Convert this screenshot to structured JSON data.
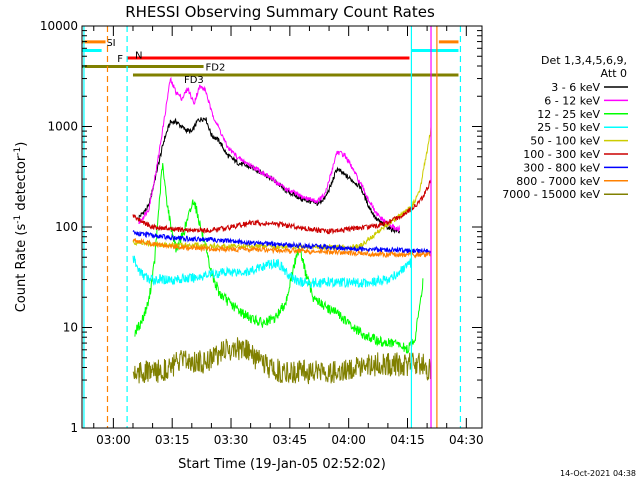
{
  "chart_data": {
    "type": "line",
    "title": "RHESSI Observing Summary Count Rates",
    "xlabel": "Start Time (19-Jan-05 02:52:02)",
    "ylabel_main": "Count Rate (s",
    "ylabel_sup": "-1",
    "ylabel_tail": " detector",
    "ylabel_sup2": "-1",
    "ylabel_end": ")",
    "yscale": "log",
    "ylim": [
      1,
      10000
    ],
    "xlim_minutes": [
      172,
      274
    ],
    "x_ticks": [
      {
        "minute": 180,
        "label": "03:00"
      },
      {
        "minute": 195,
        "label": "03:15"
      },
      {
        "minute": 210,
        "label": "03:30"
      },
      {
        "minute": 225,
        "label": "03:45"
      },
      {
        "minute": 240,
        "label": "04:00"
      },
      {
        "minute": 255,
        "label": "04:15"
      },
      {
        "minute": 270,
        "label": "04:30"
      }
    ],
    "y_ticks": [
      {
        "value": 1,
        "label": "1"
      },
      {
        "value": 10,
        "label": "10"
      },
      {
        "value": 100,
        "label": "100"
      },
      {
        "value": 1000,
        "label": "1000"
      },
      {
        "value": 10000,
        "label": "10000"
      }
    ],
    "legend_header": [
      "Det 1,3,4,5,6,9,",
      "Att 0"
    ],
    "legend_position": "right",
    "series": [
      {
        "name": "3 - 6 keV",
        "color": "#000000",
        "x": [
          186.5,
          189,
          191,
          193,
          194.5,
          196,
          198,
          200,
          201.5,
          203.5,
          205,
          207,
          209,
          212,
          216,
          220,
          224,
          228,
          232,
          234,
          235.5,
          237,
          239,
          241,
          243,
          245,
          247,
          249,
          251,
          253
        ],
        "y": [
          125,
          160,
          350,
          750,
          1100,
          1120,
          950,
          880,
          1150,
          1220,
          820,
          720,
          520,
          430,
          380,
          310,
          230,
          190,
          170,
          195,
          260,
          380,
          330,
          290,
          250,
          165,
          120,
          105,
          95,
          90
        ]
      },
      {
        "name": "6 - 12 keV",
        "color": "#ff00ff",
        "x": [
          186.5,
          189,
          191,
          193,
          194.5,
          196,
          197.5,
          199,
          200.5,
          202,
          203.5,
          205,
          207,
          209,
          212,
          216,
          220,
          224,
          228,
          232,
          234,
          235.5,
          237,
          239,
          241,
          243,
          245,
          247,
          249,
          251,
          253
        ],
        "y": [
          110,
          150,
          380,
          1200,
          2950,
          2200,
          1900,
          2400,
          1700,
          2500,
          2300,
          1400,
          950,
          630,
          480,
          390,
          310,
          240,
          200,
          180,
          210,
          340,
          560,
          520,
          380,
          270,
          190,
          135,
          115,
          100,
          95
        ]
      },
      {
        "name": "12 - 25 keV",
        "color": "#00ff00",
        "x": [
          185.5,
          187,
          189,
          190.5,
          191.5,
          192.5,
          193.5,
          194.5,
          196,
          198,
          200.5,
          202,
          203.5,
          205,
          207,
          210,
          214,
          218,
          221,
          224,
          226,
          227.5,
          229,
          231,
          234,
          237,
          241,
          245,
          249,
          252,
          255,
          257,
          259
        ],
        "y": [
          9,
          11,
          18,
          45,
          140,
          420,
          200,
          110,
          60,
          90,
          190,
          110,
          60,
          35,
          22,
          17,
          13,
          11,
          12,
          18,
          40,
          65,
          35,
          20,
          16,
          14,
          10,
          8,
          7,
          7,
          6,
          8,
          30
        ]
      },
      {
        "name": "25 - 50 keV",
        "color": "#00ffff",
        "x": [
          185,
          186,
          187,
          189,
          191,
          195,
          200,
          205,
          210,
          215,
          219,
          222,
          225,
          228,
          232,
          236,
          240,
          245,
          250,
          255,
          256
        ],
        "y": [
          50,
          40,
          35,
          30,
          30,
          30,
          31,
          34,
          36,
          36,
          42,
          44,
          32,
          28,
          28,
          28,
          28,
          28,
          30,
          40,
          45
        ]
      },
      {
        "name": "50 - 100 keV",
        "color": "#cccc00",
        "x": [
          185,
          190,
          195,
          200,
          205,
          210,
          215,
          220,
          225,
          230,
          235,
          240,
          243,
          246,
          249,
          252,
          254,
          256,
          258,
          259.5,
          261
        ],
        "y": [
          70,
          68,
          66,
          66,
          65,
          65,
          65,
          64,
          64,
          63,
          63,
          63,
          65,
          80,
          100,
          120,
          140,
          160,
          220,
          450,
          950
        ]
      },
      {
        "name": "100 - 300 keV",
        "color": "#cc0000",
        "x": [
          185,
          187,
          190,
          195,
          200,
          205,
          210,
          215,
          220,
          225,
          230,
          235,
          240,
          245,
          248,
          251,
          254,
          257,
          259,
          261
        ],
        "y": [
          130,
          115,
          100,
          95,
          92,
          93,
          100,
          110,
          108,
          103,
          95,
          90,
          95,
          100,
          105,
          115,
          135,
          160,
          200,
          290
        ]
      },
      {
        "name": "300 - 800 keV",
        "color": "#0000ff",
        "x": [
          185,
          190,
          195,
          200,
          205,
          210,
          215,
          220,
          225,
          230,
          235,
          240,
          245,
          250,
          255,
          258,
          261
        ],
        "y": [
          88,
          82,
          78,
          76,
          75,
          72,
          70,
          68,
          66,
          64,
          63,
          61,
          60,
          59,
          58,
          58,
          58
        ]
      },
      {
        "name": "800 - 7000 keV",
        "color": "#ff8000",
        "x": [
          185,
          190,
          195,
          200,
          205,
          210,
          215,
          220,
          225,
          230,
          235,
          240,
          245,
          250,
          255,
          258,
          261
        ],
        "y": [
          75,
          68,
          64,
          62,
          61,
          60,
          60,
          59,
          58,
          57,
          56,
          55,
          54,
          53,
          53,
          53,
          53
        ]
      },
      {
        "name": "7000 - 15000 keV",
        "color": "#808000",
        "x": [
          185,
          188,
          191,
          194,
          197,
          200,
          203,
          206,
          209,
          212,
          214,
          216,
          218,
          221,
          224,
          227,
          230,
          233,
          236,
          239,
          242,
          245,
          248,
          251,
          254,
          257,
          259,
          261
        ],
        "y": [
          3.6,
          3.6,
          3.6,
          4,
          4.5,
          4.7,
          4.5,
          5.3,
          6,
          6.2,
          5.8,
          5,
          4.3,
          3.8,
          3.6,
          3.6,
          3.6,
          3.8,
          3.6,
          3.6,
          4.3,
          4.3,
          4.3,
          4.3,
          4.3,
          4.3,
          4.3,
          3.6
        ]
      }
    ],
    "flag_bars": [
      {
        "label": "SI",
        "color": "#ff8000",
        "start": 172,
        "end": 178,
        "value": 6950
      },
      {
        "label": "SI",
        "color": "#ff8000",
        "start": 263,
        "end": 268,
        "value": 6950
      },
      {
        "label": "N",
        "color": "#00ffff",
        "start": 172,
        "end": 177,
        "value": 5700
      },
      {
        "label": "N",
        "color": "#00ffff",
        "start": 256,
        "end": 268,
        "value": 5700
      },
      {
        "label": "F",
        "color": "#ff0000",
        "start": 183.5,
        "end": 255.5,
        "value": 4800
      },
      {
        "label": "FD2",
        "color": "#808000",
        "start": 172,
        "end": 203,
        "value": 3950
      },
      {
        "label": "FD3",
        "color": "#808000",
        "start": 185,
        "end": 268,
        "value": 3250
      }
    ],
    "vertical_lines": [
      {
        "minute": 172.5,
        "color": "#00ffff",
        "dash": false
      },
      {
        "minute": 178.5,
        "color": "#ff8000",
        "dash": true
      },
      {
        "minute": 183.5,
        "color": "#00ffff",
        "dash": true
      },
      {
        "minute": 256,
        "color": "#00ffff",
        "dash": false
      },
      {
        "minute": 261,
        "color": "#ff00ff",
        "dash": false
      },
      {
        "minute": 262.5,
        "color": "#ff8000",
        "dash": false
      },
      {
        "minute": 268.5,
        "color": "#00ffff",
        "dash": true
      }
    ],
    "timestamp": "14-Oct-2021 04:38"
  }
}
